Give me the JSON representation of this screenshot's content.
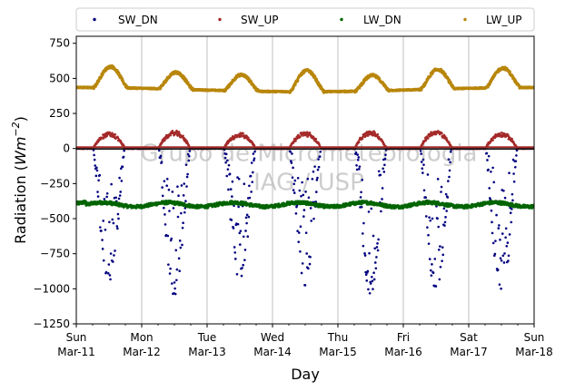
{
  "chart_data": {
    "type": "scatter",
    "title": "",
    "xlabel": "Day",
    "ylabel_prefix": "Radiation (",
    "ylabel_unit_base": "Wm",
    "ylabel_unit_exp": "−2",
    "ylabel_suffix": ")",
    "xlim_days": [
      0,
      7
    ],
    "ylim": [
      -1250,
      800
    ],
    "yticks": [
      -1250,
      -1000,
      -750,
      -500,
      -250,
      0,
      250,
      500,
      750
    ],
    "xticks": [
      {
        "day": 0,
        "line1": "Sun",
        "line2": "Mar-11"
      },
      {
        "day": 1,
        "line1": "Mon",
        "line2": "Mar-12"
      },
      {
        "day": 2,
        "line1": "Tue",
        "line2": "Mar-13"
      },
      {
        "day": 3,
        "line1": "Wed",
        "line2": "Mar-14"
      },
      {
        "day": 4,
        "line1": "Thu",
        "line2": "Mar-15"
      },
      {
        "day": 5,
        "line1": "Fri",
        "line2": "Mar-16"
      },
      {
        "day": 6,
        "line1": "Sat",
        "line2": "Mar-17"
      },
      {
        "day": 7,
        "line1": "Sun",
        "line2": "Mar-18"
      }
    ],
    "grid": "vertical",
    "legend_position": "top",
    "watermark_line1": "Grupo de Micrometeorologia",
    "watermark_line2": "IAG / USP",
    "series": [
      {
        "name": "SW_DN",
        "color": "#00007f",
        "daily_min": [
          -970,
          -1050,
          -960,
          -980,
          -1050,
          -1070,
          -1090
        ]
      },
      {
        "name": "SW_UP",
        "color": "#a52a2a",
        "daily_max": [
          115,
          125,
          110,
          120,
          125,
          130,
          115
        ]
      },
      {
        "name": "LW_DN",
        "color": "#006400",
        "typical": -400,
        "min": -460,
        "max": -340
      },
      {
        "name": "LW_UP",
        "color": "#b8860b",
        "night": 420,
        "daily_max": [
          570,
          540,
          535,
          570,
          530,
          560,
          560
        ]
      }
    ]
  }
}
